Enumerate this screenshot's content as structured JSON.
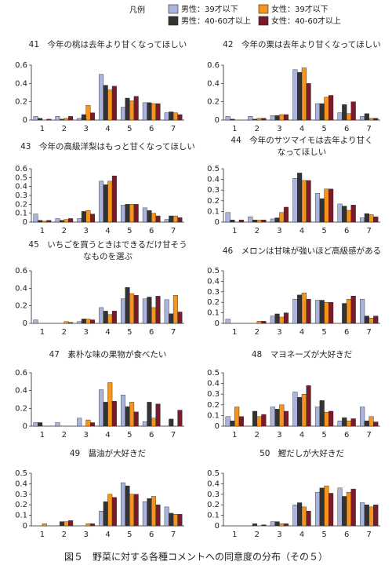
{
  "legend": {
    "title": "凡例",
    "series": [
      {
        "name": "男性：39才以下",
        "color": "#aab4dc"
      },
      {
        "name": "男性：40-60才以上",
        "color": "#333333"
      },
      {
        "name": "女性：39才以下",
        "color": "#f7941d"
      },
      {
        "name": "女性：40-60才以上",
        "color": "#7b1a2a"
      }
    ]
  },
  "caption": "図５　野菜に対する各種コメントへの同意度の分布（その５）",
  "chart_data": [
    {
      "type": "bar",
      "title": [
        "41　今年の桃は去年より甘くなってほしい"
      ],
      "categories": [
        "1",
        "2",
        "3",
        "4",
        "5",
        "6",
        "7"
      ],
      "ylim": [
        0,
        0.6
      ],
      "yticks": [
        0,
        0.2,
        0.4,
        0.6
      ],
      "series": [
        {
          "values": [
            0.04,
            0.04,
            0.02,
            0.5,
            0.14,
            0.19,
            0.08
          ]
        },
        {
          "values": [
            0.02,
            0.01,
            0.06,
            0.38,
            0.24,
            0.19,
            0.09
          ]
        },
        {
          "values": [
            0.0,
            0.02,
            0.16,
            0.33,
            0.21,
            0.18,
            0.08
          ]
        },
        {
          "values": [
            0.01,
            0.04,
            0.08,
            0.37,
            0.26,
            0.18,
            0.06
          ]
        }
      ]
    },
    {
      "type": "bar",
      "title": [
        "42　今年の栗は去年より甘くなってほしい"
      ],
      "categories": [
        "1",
        "2",
        "3",
        "4",
        "5",
        "6",
        "7"
      ],
      "ylim": [
        0,
        0.6
      ],
      "yticks": [
        0,
        0.2,
        0.4,
        0.6
      ],
      "series": [
        {
          "values": [
            0.04,
            0.04,
            0.05,
            0.55,
            0.18,
            0.08,
            0.04
          ]
        },
        {
          "values": [
            0.01,
            0.01,
            0.05,
            0.52,
            0.18,
            0.17,
            0.07
          ]
        },
        {
          "values": [
            0.0,
            0.02,
            0.06,
            0.57,
            0.25,
            0.07,
            0.02
          ]
        },
        {
          "values": [
            0.0,
            0.02,
            0.06,
            0.4,
            0.27,
            0.2,
            0.02
          ]
        }
      ]
    },
    {
      "type": "bar",
      "title": [
        "43　今年の高級洋梨はもっと甘くなってほしい"
      ],
      "categories": [
        "1",
        "2",
        "3",
        "4",
        "5",
        "6",
        "7"
      ],
      "ylim": [
        0,
        0.6
      ],
      "yticks": [
        0,
        0.1,
        0.2,
        0.3,
        0.4,
        0.5,
        0.6
      ],
      "series": [
        {
          "values": [
            0.09,
            0.04,
            0.04,
            0.46,
            0.19,
            0.16,
            0.03
          ]
        },
        {
          "values": [
            0.02,
            0.02,
            0.12,
            0.42,
            0.2,
            0.13,
            0.07
          ]
        },
        {
          "values": [
            0.01,
            0.03,
            0.13,
            0.46,
            0.2,
            0.1,
            0.07
          ]
        },
        {
          "values": [
            0.02,
            0.04,
            0.09,
            0.52,
            0.2,
            0.07,
            0.05
          ]
        }
      ]
    },
    {
      "type": "bar",
      "title": [
        "44　今年のサツマイモは去年より甘く",
        "なってほしい"
      ],
      "categories": [
        "1",
        "2",
        "3",
        "4",
        "5",
        "6",
        "7"
      ],
      "ylim": [
        0,
        0.5
      ],
      "yticks": [
        0,
        0.1,
        0.2,
        0.3,
        0.4,
        0.5
      ],
      "series": [
        {
          "values": [
            0.09,
            0.05,
            0.03,
            0.41,
            0.27,
            0.17,
            0.04
          ]
        },
        {
          "values": [
            0.02,
            0.02,
            0.04,
            0.46,
            0.22,
            0.15,
            0.08
          ]
        },
        {
          "values": [
            0.0,
            0.02,
            0.09,
            0.39,
            0.31,
            0.11,
            0.07
          ]
        },
        {
          "values": [
            0.02,
            0.02,
            0.14,
            0.39,
            0.31,
            0.16,
            0.05
          ]
        }
      ]
    },
    {
      "type": "bar",
      "title": [
        "45　いちごを買うときはできるだけ甘そう",
        "なものを選ぶ"
      ],
      "categories": [
        "1",
        "2",
        "3",
        "4",
        "5",
        "6",
        "7"
      ],
      "ylim": [
        0,
        0.6
      ],
      "yticks": [
        0,
        0.2,
        0.4,
        0.6
      ],
      "series": [
        {
          "values": [
            0.04,
            0.0,
            0.02,
            0.18,
            0.28,
            0.28,
            0.27
          ]
        },
        {
          "values": [
            0.0,
            0.0,
            0.05,
            0.14,
            0.41,
            0.3,
            0.11
          ]
        },
        {
          "values": [
            0.0,
            0.02,
            0.05,
            0.1,
            0.34,
            0.18,
            0.32
          ]
        },
        {
          "values": [
            0.0,
            0.01,
            0.04,
            0.14,
            0.32,
            0.31,
            0.13
          ]
        }
      ]
    },
    {
      "type": "bar",
      "title": [
        "46　メロンは甘味が強いほど高級感がある"
      ],
      "categories": [
        "1",
        "2",
        "3",
        "4",
        "5",
        "6",
        "7"
      ],
      "ylim": [
        0,
        0.5
      ],
      "yticks": [
        0,
        0.1,
        0.2,
        0.3,
        0.4,
        0.5
      ],
      "series": [
        {
          "values": [
            0.04,
            0.0,
            0.07,
            0.23,
            0.22,
            0.0,
            0.23
          ]
        },
        {
          "values": [
            0.0,
            0.0,
            0.09,
            0.27,
            0.22,
            0.19,
            0.07
          ]
        },
        {
          "values": [
            0.0,
            0.02,
            0.06,
            0.29,
            0.2,
            0.23,
            0.05
          ]
        },
        {
          "values": [
            0.0,
            0.02,
            0.1,
            0.23,
            0.2,
            0.26,
            0.07
          ]
        }
      ]
    },
    {
      "type": "bar",
      "title": [
        "47　素朴な味の果物が食べたい"
      ],
      "categories": [
        "1",
        "2",
        "3",
        "4",
        "5",
        "6",
        "7"
      ],
      "ylim": [
        0,
        0.6
      ],
      "yticks": [
        0,
        0.2,
        0.4,
        0.6
      ],
      "series": [
        {
          "values": [
            0.04,
            0.04,
            0.09,
            0.41,
            0.35,
            0.05,
            0.0
          ]
        },
        {
          "values": [
            0.04,
            0.0,
            0.0,
            0.27,
            0.22,
            0.27,
            0.08
          ]
        },
        {
          "values": [
            0.0,
            0.0,
            0.07,
            0.49,
            0.27,
            0.09,
            0.0
          ]
        },
        {
          "values": [
            0.0,
            0.0,
            0.04,
            0.28,
            0.16,
            0.25,
            0.18
          ]
        }
      ]
    },
    {
      "type": "bar",
      "title": [
        "48　マヨネーズが大好きだ"
      ],
      "categories": [
        "1",
        "2",
        "3",
        "4",
        "5",
        "6",
        "7"
      ],
      "ylim": [
        0,
        0.5
      ],
      "yticks": [
        0,
        0.1,
        0.2,
        0.3,
        0.4,
        0.5
      ],
      "series": [
        {
          "values": [
            0.09,
            0.0,
            0.18,
            0.32,
            0.18,
            0.05,
            0.18
          ]
        },
        {
          "values": [
            0.05,
            0.14,
            0.16,
            0.27,
            0.24,
            0.08,
            0.05
          ]
        },
        {
          "values": [
            0.18,
            0.09,
            0.2,
            0.3,
            0.13,
            0.05,
            0.09
          ]
        },
        {
          "values": [
            0.09,
            0.11,
            0.14,
            0.38,
            0.14,
            0.07,
            0.04
          ]
        }
      ]
    },
    {
      "type": "bar",
      "title": [
        "49　醤油が大好きだ"
      ],
      "categories": [
        "1",
        "2",
        "3",
        "4",
        "5",
        "6",
        "7"
      ],
      "ylim": [
        0,
        0.5
      ],
      "yticks": [
        0,
        0.1,
        0.2,
        0.3,
        0.4,
        0.5
      ],
      "series": [
        {
          "values": [
            0.0,
            0.0,
            0.0,
            0.14,
            0.41,
            0.23,
            0.18
          ]
        },
        {
          "values": [
            0.0,
            0.04,
            0.0,
            0.23,
            0.38,
            0.26,
            0.12
          ]
        },
        {
          "values": [
            0.02,
            0.04,
            0.02,
            0.3,
            0.3,
            0.28,
            0.11
          ]
        },
        {
          "values": [
            0.0,
            0.05,
            0.02,
            0.27,
            0.3,
            0.2,
            0.11
          ]
        }
      ]
    },
    {
      "type": "bar",
      "title": [
        "50　鰹だしが大好きだ"
      ],
      "categories": [
        "1",
        "2",
        "3",
        "4",
        "5",
        "6",
        "7"
      ],
      "ylim": [
        0,
        0.5
      ],
      "yticks": [
        0,
        0.1,
        0.2,
        0.3,
        0.4,
        0.5
      ],
      "series": [
        {
          "values": [
            0.0,
            0.0,
            0.04,
            0.2,
            0.32,
            0.36,
            0.22
          ]
        },
        {
          "values": [
            0.0,
            0.02,
            0.04,
            0.22,
            0.36,
            0.28,
            0.2
          ]
        },
        {
          "values": [
            0.0,
            0.0,
            0.02,
            0.18,
            0.38,
            0.32,
            0.18
          ]
        },
        {
          "values": [
            0.0,
            0.01,
            0.02,
            0.14,
            0.31,
            0.35,
            0.2
          ]
        }
      ]
    }
  ]
}
